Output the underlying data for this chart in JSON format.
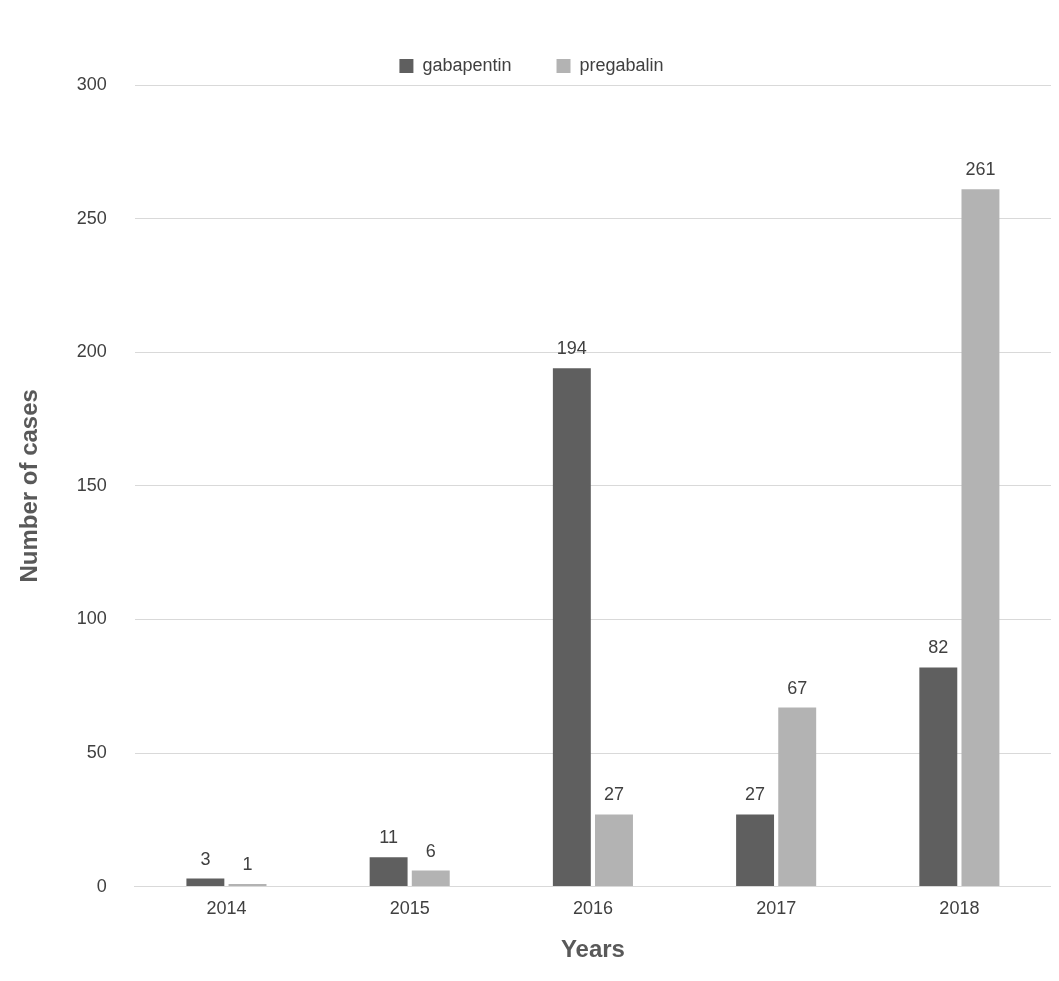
{
  "chart_data": {
    "type": "bar",
    "xlabel": "Years",
    "ylabel": "Number of cases",
    "categories": [
      "2014",
      "2015",
      "2016",
      "2017",
      "2018"
    ],
    "series": [
      {
        "name": "gabapentin",
        "color": "#5f5f5f",
        "values": [
          3,
          11,
          194,
          27,
          82
        ]
      },
      {
        "name": "pregabalin",
        "color": "#b3b3b3",
        "values": [
          1,
          6,
          27,
          67,
          261
        ]
      }
    ],
    "ylim": [
      0,
      300
    ],
    "yticks": [
      0,
      50,
      100,
      150,
      200,
      250,
      300
    ],
    "grid": "y",
    "legend": "top",
    "data_labels": true
  }
}
